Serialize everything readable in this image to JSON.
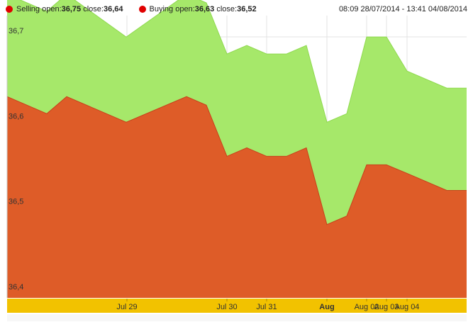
{
  "chart_data": {
    "type": "area",
    "legend_position": "top-left",
    "legend": [
      {
        "name": "Selling",
        "open_label": "open:",
        "open": "36,75",
        "close_label": "close:",
        "close": "36,64",
        "color": "#e00000"
      },
      {
        "name": "Buying",
        "open_label": "open:",
        "open": "36,63",
        "close_label": "close:",
        "close": "36,52",
        "color": "#e00000"
      }
    ],
    "date_range": "08:09 28/07/2014 - 13:41 04/08/2014",
    "ylim": [
      36.394,
      36.725
    ],
    "y_ticks": [
      {
        "value": 36.7,
        "label": "36,7"
      },
      {
        "value": 36.6,
        "label": "36,6"
      },
      {
        "value": 36.5,
        "label": "36,5"
      },
      {
        "value": 36.4,
        "label": "36,4"
      }
    ],
    "x_ticks": [
      {
        "label": "Jul 29",
        "bold": false
      },
      {
        "label": "Jul 30",
        "bold": false
      },
      {
        "label": "Jul 31",
        "bold": false
      },
      {
        "label": "Aug",
        "bold": true
      },
      {
        "label": "Aug 02",
        "bold": false
      },
      {
        "label": "Aug 03",
        "bold": false
      },
      {
        "label": "Aug 04",
        "bold": false
      }
    ],
    "grid": true,
    "series": [
      {
        "name": "Selling",
        "color": "#a6e86a",
        "values": [
          36.75,
          36.73,
          36.75,
          36.7,
          36.75,
          36.74,
          36.68,
          36.69,
          36.68,
          36.68,
          36.69,
          36.6,
          36.61,
          36.7,
          36.7,
          36.66,
          36.64,
          36.64
        ]
      },
      {
        "name": "Buying",
        "color": "#de5c28",
        "values": [
          36.63,
          36.61,
          36.63,
          36.6,
          36.63,
          36.62,
          36.56,
          36.57,
          36.56,
          36.56,
          36.57,
          36.48,
          36.49,
          36.55,
          36.55,
          36.54,
          36.52,
          36.52
        ]
      }
    ]
  }
}
